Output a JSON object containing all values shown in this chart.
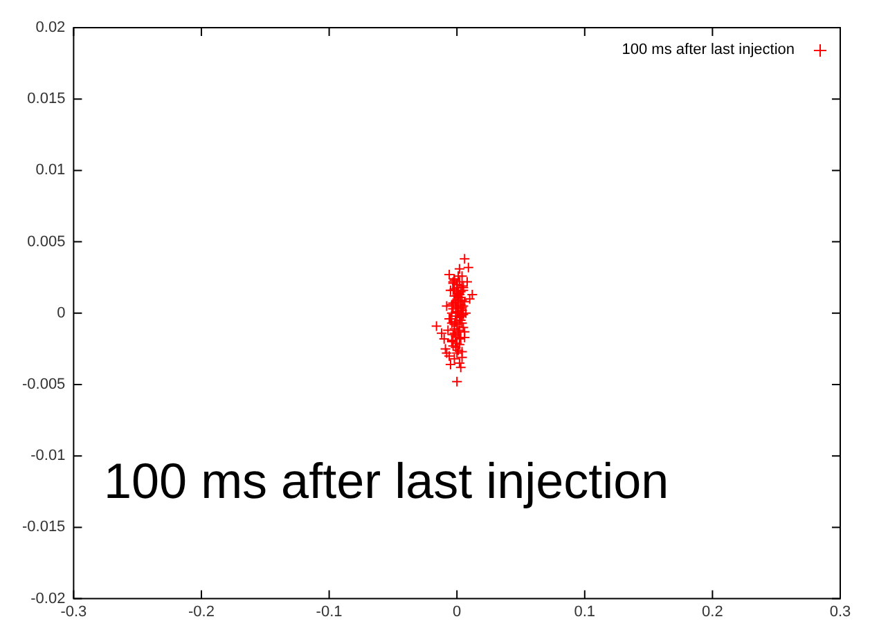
{
  "chart_data": {
    "type": "scatter",
    "annotations": [
      "100 ms after last injection"
    ],
    "series": [
      {
        "name": "100 ms after last injection",
        "color": "#ff0000",
        "x": [
          0.006,
          0.009,
          0.002,
          -0.006,
          0.004,
          0.012,
          -0.003,
          0.008,
          0.0,
          0.005,
          -0.005,
          0.003,
          0.01,
          -0.002,
          0.006,
          0.001,
          -0.008,
          0.004,
          -0.004,
          0.007,
          0.0,
          -0.006,
          0.003,
          -0.002,
          0.005,
          -0.007,
          0.001,
          -0.003,
          -0.01,
          -0.016,
          -0.004,
          0.002,
          -0.012,
          -0.009,
          0.006,
          -0.006,
          0.004,
          -0.002,
          -0.008,
          0.002,
          0.003,
          -0.005,
          0.0,
          0.004,
          0.0,
          -0.003,
          0.003,
          -0.001,
          0.002,
          -0.001,
          0.001,
          0.002,
          -0.002,
          0.001,
          0.0,
          0.003,
          -0.003,
          0.004,
          -0.004,
          0.005,
          0.0,
          0.002,
          -0.002,
          0.004,
          -0.004,
          0.001,
          -0.001,
          0.003,
          -0.003,
          0.005,
          -0.005,
          0.002,
          -0.002,
          0.0,
          0.004,
          -0.001,
          0.001,
          0.003,
          -0.003,
          0.006,
          -0.002,
          0.0,
          0.002,
          -0.004,
          0.004,
          0.001,
          -0.001,
          0.003,
          0.0,
          -0.002,
          0.002,
          0.005,
          -0.003,
          0.001,
          0.0,
          0.004,
          0.001,
          -0.001
        ],
        "values": [
          0.0038,
          0.0032,
          0.0031,
          0.0027,
          0.0026,
          0.0013,
          0.0022,
          0.0022,
          0.002,
          0.0018,
          0.0016,
          0.0015,
          0.001,
          0.0012,
          0.0008,
          0.0009,
          0.0005,
          0.0004,
          0.0,
          0.0,
          -0.0002,
          -0.0004,
          -0.0005,
          -0.0008,
          -0.001,
          -0.0012,
          -0.0013,
          -0.0015,
          -0.0018,
          -0.0009,
          -0.002,
          -0.0022,
          -0.0014,
          -0.0025,
          -0.0017,
          -0.003,
          -0.0027,
          -0.0032,
          -0.0028,
          -0.0035,
          -0.0038,
          -0.0036,
          -0.0048,
          -0.0031,
          0.0012,
          0.0007,
          0.0003,
          0.0001,
          -0.0003,
          -0.0006,
          0.0005,
          -0.0012,
          -0.0011,
          0.0015,
          0.0018,
          0.0011,
          0.0003,
          -0.0001,
          -0.0007,
          0.0005,
          0.002,
          0.0022,
          0.0017,
          0.0019,
          0.0006,
          0.0014,
          -0.0016,
          0.0006,
          -0.0023,
          0.0016,
          -0.0004,
          -0.0018,
          0.0024,
          -0.0021,
          0.0002,
          0.0008,
          -0.0026,
          -0.0017,
          0.0021,
          -0.0013,
          0.0023,
          -0.0009,
          -0.0005,
          -0.0019,
          0.0009,
          0.0011,
          -0.0024,
          -0.0002,
          -0.0028,
          -0.0014,
          0.0013,
          -0.0001,
          0.0016,
          0.0001,
          0.0004,
          -0.0007,
          0.0026,
          0.0007
        ]
      }
    ],
    "xlim": [
      -0.3,
      0.3
    ],
    "xticks": [
      -0.3,
      -0.2,
      -0.1,
      0,
      0.1,
      0.2,
      0.3
    ],
    "ylim": [
      -0.02,
      0.02
    ],
    "yticks": [
      -0.02,
      -0.015,
      -0.01,
      -0.005,
      0,
      0.005,
      0.01,
      0.015,
      0.02
    ],
    "marker": "cross",
    "legend": "top right",
    "grid": false
  }
}
